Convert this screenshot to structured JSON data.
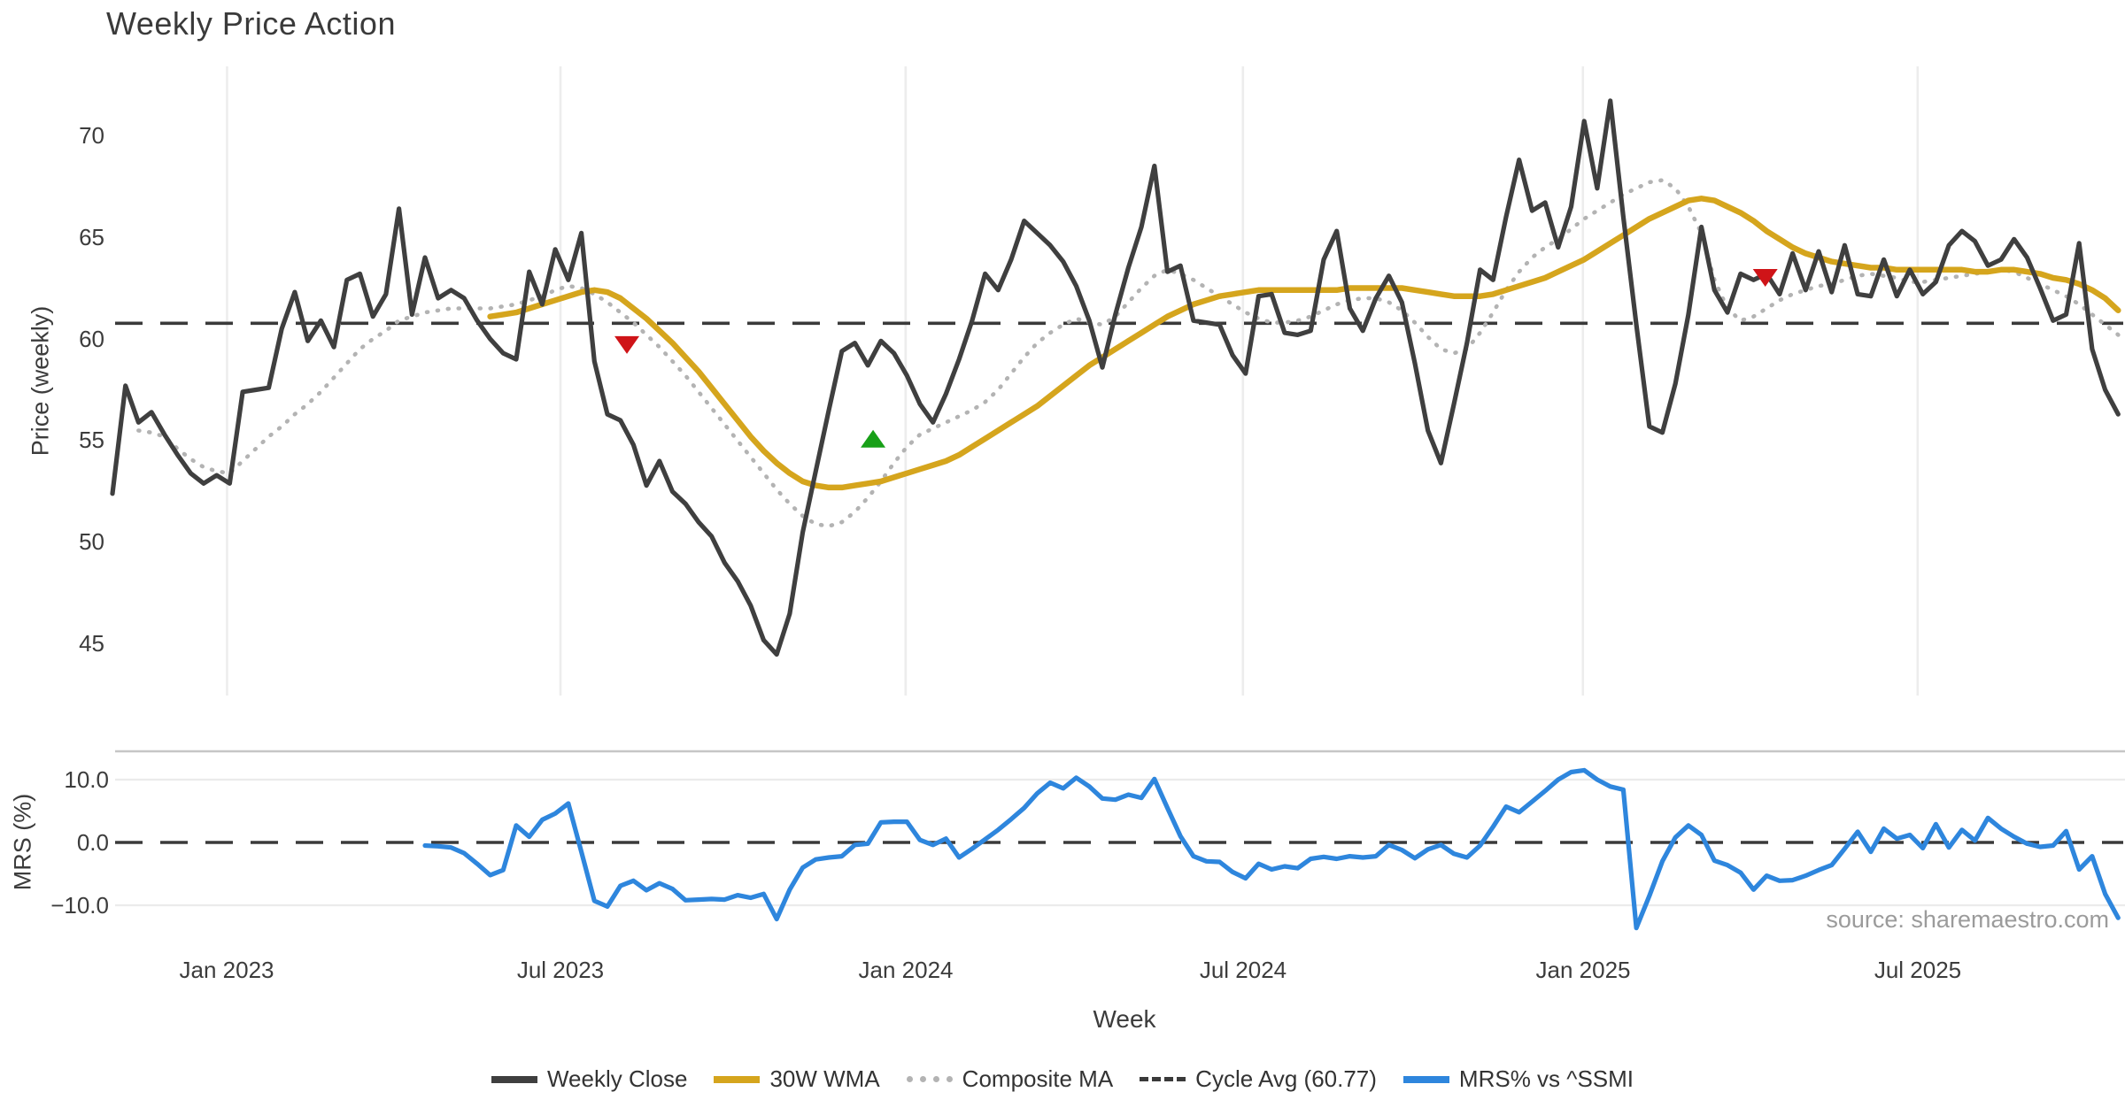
{
  "title": "Weekly Price Action",
  "source_text": "source: sharemaestro.com",
  "legend": {
    "items": [
      {
        "key": "close",
        "label": "Weekly Close",
        "swatch": "solid-close"
      },
      {
        "key": "wma",
        "label": "30W WMA",
        "swatch": "solid-wma"
      },
      {
        "key": "composite",
        "label": "Composite MA",
        "swatch": "dotted-comp"
      },
      {
        "key": "cycle",
        "label": "Cycle Avg (60.77)",
        "swatch": "dashed-cycle"
      },
      {
        "key": "mrs",
        "label": "MRS% vs ^SSMI",
        "swatch": "solid-mrs"
      }
    ]
  },
  "chart_data": {
    "type": "line",
    "title": "Weekly Price Action",
    "x_unit": "week_index",
    "x_axis": {
      "label": "Week",
      "ticks": [
        {
          "week": 8.8,
          "label": "Jan 2023"
        },
        {
          "week": 34.4,
          "label": "Jul 2023"
        },
        {
          "week": 60.9,
          "label": "Jan 2024"
        },
        {
          "week": 86.8,
          "label": "Jul 2024"
        },
        {
          "week": 112.9,
          "label": "Jan 2025"
        },
        {
          "week": 138.6,
          "label": "Jul 2025"
        }
      ]
    },
    "colors": {
      "close": "#3f3f3f",
      "wma": "#d5a51d",
      "composite": "#b3b3b3",
      "cycle": "#3a3a3a",
      "mrs": "#2e86dd",
      "sell": "#cf1418",
      "buy": "#18a018",
      "grid": "#ededed",
      "panel_border": "#c6c6c6",
      "minor_grid": "#ebebeb"
    },
    "price_panel": {
      "ylabel": "Price (weekly)",
      "ylim": [
        42.5,
        73.3
      ],
      "yticks": [
        {
          "v": 70,
          "label": "70"
        },
        {
          "v": 65,
          "label": "65"
        },
        {
          "v": 60,
          "label": "60"
        },
        {
          "v": 55,
          "label": "55"
        },
        {
          "v": 50,
          "label": "50"
        },
        {
          "v": 45,
          "label": "45"
        }
      ],
      "cycle_avg": {
        "value": 60.77,
        "label": "Cycle Avg (60.77)"
      },
      "series": [
        {
          "name": "Weekly Close",
          "color_key": "close",
          "style": "solid",
          "start_week": 0,
          "values": [
            52.4,
            57.7,
            55.9,
            56.4,
            55.3,
            54.3,
            53.4,
            52.9,
            53.3,
            52.9,
            57.4,
            57.5,
            57.6,
            60.5,
            62.3,
            59.9,
            60.9,
            59.6,
            62.9,
            63.2,
            61.1,
            62.2,
            66.4,
            61.2,
            64.0,
            62.0,
            62.4,
            62.0,
            60.9,
            60.0,
            59.3,
            59.0,
            63.3,
            61.7,
            64.4,
            62.9,
            65.2,
            58.9,
            56.3,
            56.0,
            54.8,
            52.8,
            54.0,
            52.5,
            51.9,
            51.0,
            50.3,
            49.0,
            48.1,
            46.9,
            45.2,
            44.5,
            46.5,
            50.5,
            53.5,
            56.5,
            59.4,
            59.8,
            58.7,
            59.9,
            59.3,
            58.2,
            56.8,
            55.9,
            57.3,
            59.0,
            60.9,
            63.2,
            62.4,
            63.9,
            65.8,
            65.2,
            64.6,
            63.8,
            62.6,
            60.9,
            58.6,
            61.2,
            63.5,
            65.5,
            68.5,
            63.3,
            63.6,
            60.9,
            60.8,
            60.7,
            59.2,
            58.3,
            62.1,
            62.2,
            60.3,
            60.2,
            60.4,
            63.9,
            65.3,
            61.5,
            60.4,
            62.0,
            63.1,
            61.8,
            58.8,
            55.5,
            53.9,
            56.8,
            59.8,
            63.4,
            62.9,
            66.0,
            68.8,
            66.3,
            66.7,
            64.5,
            66.5,
            70.7,
            67.4,
            71.7,
            66.0,
            60.7,
            55.7,
            55.4,
            57.8,
            61.2,
            65.5,
            62.4,
            61.3,
            63.2,
            62.9,
            63.2,
            62.2,
            64.2,
            62.4,
            64.3,
            62.3,
            64.6,
            62.2,
            62.1,
            63.9,
            62.1,
            63.4,
            62.2,
            62.8,
            64.6,
            65.3,
            64.8,
            63.6,
            63.9,
            64.9,
            64.0,
            62.5,
            60.9,
            61.2,
            64.7,
            59.5,
            57.5,
            56.3
          ]
        },
        {
          "name": "30W WMA",
          "color_key": "wma",
          "style": "solid",
          "start_week": 29,
          "values": [
            61.1,
            61.2,
            61.3,
            61.5,
            61.7,
            61.9,
            62.1,
            62.3,
            62.4,
            62.3,
            62.0,
            61.5,
            61.0,
            60.4,
            59.8,
            59.1,
            58.4,
            57.6,
            56.8,
            56.0,
            55.2,
            54.5,
            53.9,
            53.4,
            53.0,
            52.8,
            52.7,
            52.7,
            52.8,
            52.9,
            53.0,
            53.2,
            53.4,
            53.6,
            53.8,
            54.0,
            54.3,
            54.7,
            55.1,
            55.5,
            55.9,
            56.3,
            56.7,
            57.2,
            57.7,
            58.2,
            58.7,
            59.1,
            59.5,
            59.9,
            60.3,
            60.7,
            61.1,
            61.4,
            61.7,
            61.9,
            62.1,
            62.2,
            62.3,
            62.4,
            62.4,
            62.4,
            62.4,
            62.4,
            62.4,
            62.4,
            62.5,
            62.5,
            62.5,
            62.5,
            62.5,
            62.4,
            62.3,
            62.2,
            62.1,
            62.1,
            62.1,
            62.2,
            62.4,
            62.6,
            62.8,
            63.0,
            63.3,
            63.6,
            63.9,
            64.3,
            64.7,
            65.1,
            65.5,
            65.9,
            66.2,
            66.5,
            66.8,
            66.9,
            66.8,
            66.5,
            66.2,
            65.8,
            65.3,
            64.9,
            64.5,
            64.2,
            64.0,
            63.8,
            63.7,
            63.6,
            63.5,
            63.5,
            63.4,
            63.4,
            63.4,
            63.4,
            63.4,
            63.4,
            63.3,
            63.3,
            63.4,
            63.4,
            63.3,
            63.2,
            63.0,
            62.9,
            62.7,
            62.4,
            62.0,
            61.4
          ]
        },
        {
          "name": "Composite MA",
          "color_key": "composite",
          "style": "dotted",
          "start_week": 2,
          "values": [
            55.5,
            55.4,
            55.2,
            54.6,
            54.1,
            53.7,
            53.5,
            53.4,
            54.0,
            54.6,
            55.2,
            55.7,
            56.3,
            56.8,
            57.4,
            58.1,
            58.8,
            59.5,
            60.0,
            60.4,
            60.9,
            61.1,
            61.3,
            61.4,
            61.5,
            61.5,
            61.5,
            61.5,
            61.6,
            61.7,
            61.9,
            62.1,
            62.4,
            62.6,
            62.5,
            62.2,
            61.8,
            61.3,
            60.8,
            60.2,
            59.6,
            58.9,
            58.2,
            57.4,
            56.6,
            55.8,
            55.0,
            54.2,
            53.4,
            52.6,
            51.9,
            51.3,
            50.9,
            50.8,
            51.0,
            51.5,
            52.2,
            53.0,
            53.9,
            54.7,
            55.3,
            55.6,
            55.9,
            56.2,
            56.5,
            56.9,
            57.5,
            58.3,
            59.1,
            59.8,
            60.3,
            60.7,
            61.0,
            60.8,
            60.7,
            61.1,
            61.8,
            62.5,
            63.1,
            63.4,
            63.2,
            62.9,
            62.5,
            62.1,
            61.7,
            61.3,
            61.0,
            60.8,
            60.8,
            60.9,
            61.1,
            61.4,
            61.7,
            61.9,
            62.0,
            62.0,
            61.8,
            61.4,
            60.8,
            60.1,
            59.5,
            59.3,
            59.5,
            60.3,
            61.3,
            62.4,
            63.3,
            64.0,
            64.5,
            64.9,
            65.4,
            65.9,
            66.3,
            66.7,
            67.1,
            67.4,
            67.7,
            67.8,
            67.4,
            66.5,
            65.2,
            62.9,
            61.5,
            60.9,
            61.1,
            61.5,
            61.9,
            62.2,
            62.4,
            62.6,
            62.7,
            62.9,
            63.1,
            63.2,
            63.1,
            63.0,
            62.8,
            62.8,
            62.9,
            63.0,
            63.1,
            63.2,
            63.3,
            63.4,
            63.3,
            63.0,
            62.7,
            62.4,
            62.1,
            61.7,
            61.2,
            60.7,
            60.2
          ]
        }
      ],
      "markers": [
        {
          "week": 39.5,
          "value": 59.7,
          "direction": "down",
          "color_key": "sell"
        },
        {
          "week": 58.4,
          "value": 55.1,
          "direction": "up",
          "color_key": "buy"
        },
        {
          "week": 126.9,
          "value": 63.0,
          "direction": "down",
          "color_key": "sell"
        }
      ]
    },
    "mrs_panel": {
      "ylabel": "MRS (%)",
      "ylim": [
        -15.5,
        14.5
      ],
      "yticks": [
        {
          "v": 10,
          "label": "10.0"
        },
        {
          "v": 0,
          "label": "0.0"
        },
        {
          "v": -10,
          "label": "−10.0"
        }
      ],
      "zero_line": 0,
      "series": [
        {
          "name": "MRS% vs ^SSMI",
          "color_key": "mrs",
          "style": "solid",
          "start_week": 24,
          "values": [
            -0.5,
            -0.6,
            -0.8,
            -1.7,
            -3.4,
            -5.2,
            -4.4,
            2.7,
            0.9,
            3.6,
            4.6,
            6.2,
            -1.5,
            -9.3,
            -10.2,
            -6.9,
            -6.1,
            -7.6,
            -6.5,
            -7.4,
            -9.2,
            -9.1,
            -9.0,
            -9.1,
            -8.4,
            -8.8,
            -8.2,
            -12.2,
            -7.5,
            -4.0,
            -2.7,
            -2.4,
            -2.2,
            -0.4,
            -0.2,
            3.2,
            3.3,
            3.3,
            0.4,
            -0.4,
            0.6,
            -2.4,
            -1.0,
            0.5,
            2.0,
            3.7,
            5.5,
            7.8,
            9.5,
            8.6,
            10.3,
            8.9,
            7.0,
            6.8,
            7.6,
            7.1,
            10.1,
            5.5,
            1.0,
            -2.2,
            -3.0,
            -3.1,
            -4.7,
            -5.7,
            -3.4,
            -4.3,
            -3.8,
            -4.1,
            -2.6,
            -2.3,
            -2.6,
            -2.2,
            -2.4,
            -2.2,
            -0.4,
            -1.2,
            -2.5,
            -1.1,
            -0.4,
            -1.8,
            -2.4,
            -0.5,
            2.5,
            5.7,
            4.8,
            6.5,
            8.2,
            10.0,
            11.2,
            11.5,
            10.0,
            8.9,
            8.4,
            -13.6,
            -8.5,
            -3.0,
            0.8,
            2.7,
            1.2,
            -2.9,
            -3.6,
            -4.8,
            -7.5,
            -5.3,
            -6.1,
            -6.0,
            -5.3,
            -4.4,
            -3.6,
            -1.0,
            1.7,
            -1.5,
            2.2,
            0.6,
            1.2,
            -0.9,
            2.9,
            -0.8,
            2.0,
            0.3,
            3.9,
            2.2,
            0.9,
            -0.2,
            -0.7,
            -0.5,
            1.8,
            -4.3,
            -2.2,
            -8.2,
            -12.0
          ]
        }
      ]
    }
  }
}
